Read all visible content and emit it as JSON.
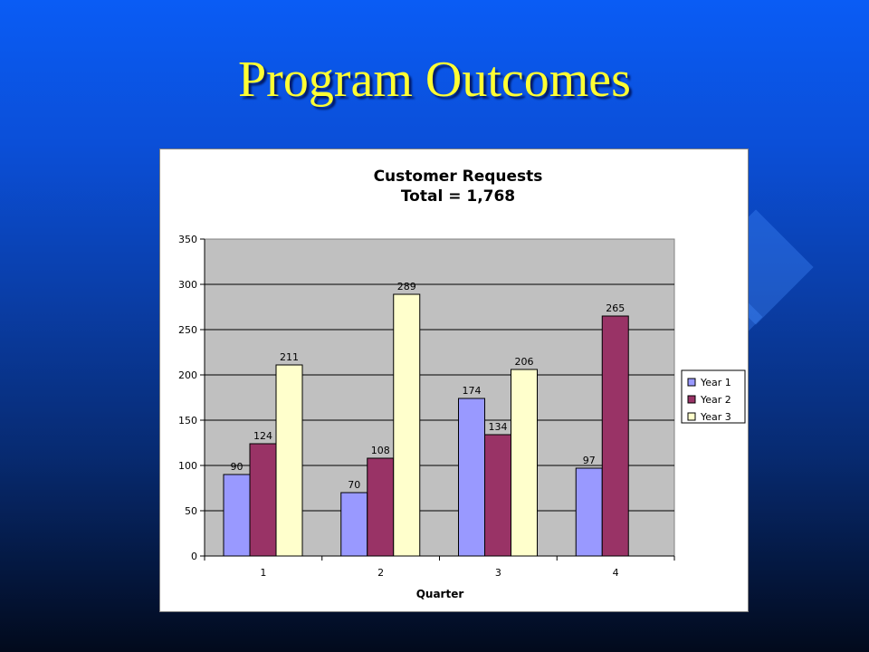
{
  "slide": {
    "title": "Program Outcomes"
  },
  "colors": {
    "year1": "#9999ff",
    "year2": "#993366",
    "year3": "#ffffcc",
    "plot_bg": "#c0c0c0"
  },
  "chart_data": {
    "type": "bar",
    "title": "Customer Requests",
    "subtitle": "Total = 1,768",
    "xlabel": "Quarter",
    "ylabel": "",
    "categories": [
      "1",
      "2",
      "3",
      "4"
    ],
    "ylim": [
      0,
      350
    ],
    "yticks": [
      0,
      50,
      100,
      150,
      200,
      250,
      300,
      350
    ],
    "grid": true,
    "legend_position": "right",
    "series": [
      {
        "name": "Year 1",
        "color": "#9999ff",
        "values": [
          90,
          70,
          174,
          97
        ]
      },
      {
        "name": "Year 2",
        "color": "#993366",
        "values": [
          124,
          108,
          134,
          265
        ]
      },
      {
        "name": "Year 3",
        "color": "#ffffcc",
        "values": [
          211,
          289,
          206,
          null
        ]
      }
    ]
  }
}
